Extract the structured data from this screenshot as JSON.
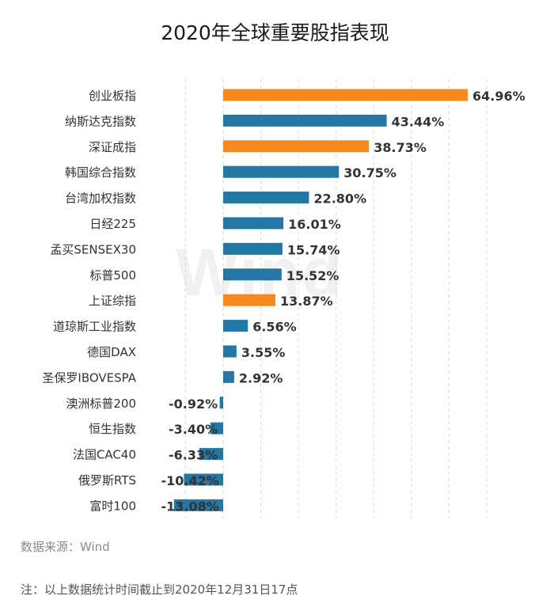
{
  "title": "2020年全球重要股指表现",
  "source": "数据来源：Wind",
  "note": "注：以上数据统计时间截止到2020年12月31日17点",
  "watermark": "Wind",
  "colors": {
    "highlight": "#f7891f",
    "base": "#2377a4",
    "grid": "#d9d9d9",
    "label": "#333333"
  },
  "chart_data": {
    "type": "bar",
    "orientation": "horizontal",
    "title": "2020年全球重要股指表现",
    "unit": "%",
    "grid": true,
    "categories": [
      "创业板指",
      "纳斯达克指数",
      "深证成指",
      "韩国综合指数",
      "台湾加权指数",
      "日经225",
      "孟买SENSEX30",
      "标普500",
      "上证综指",
      "道琼斯工业指数",
      "德国DAX",
      "圣保罗IBOVESPA",
      "澳洲标普200",
      "恒生指数",
      "法国CAC40",
      "俄罗斯RTS",
      "富时100"
    ],
    "values": [
      64.96,
      43.44,
      38.73,
      30.75,
      22.8,
      16.01,
      15.74,
      15.52,
      13.87,
      6.56,
      3.55,
      2.92,
      -0.92,
      -3.4,
      -6.33,
      -10.42,
      -13.08
    ],
    "value_labels": [
      "64.96%",
      "43.44%",
      "38.73%",
      "30.75%",
      "22.80%",
      "16.01%",
      "15.74%",
      "15.52%",
      "13.87%",
      "6.56%",
      "3.55%",
      "2.92%",
      "-0.92%",
      "-3.40%",
      "-6.33%",
      "-10.42%",
      "-13.08%"
    ],
    "highlighted": [
      "创业板指",
      "深证成指",
      "上证综指"
    ]
  }
}
